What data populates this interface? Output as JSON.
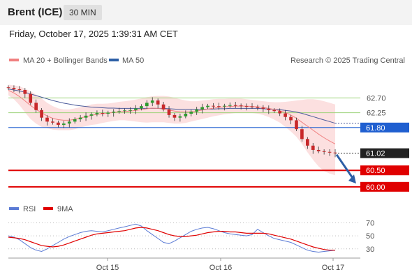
{
  "header": {
    "title": "Brent (ICE)",
    "interval": "30 MIN",
    "timestamp": "Friday, October 17, 2025 1:39:31 AM CET"
  },
  "legend": {
    "ma20_label": "MA 20 + Bollinger Bands",
    "ma50_label": "MA 50",
    "credit": "Research © 2025 Trading Central",
    "rsi_label": "RSI",
    "rsi_ma_label": "9MA"
  },
  "colors": {
    "ma20": "#f08080",
    "bands_fill": "#fbd5d5",
    "ma50": "#4a5a9a",
    "candle_up": "#2e9b2e",
    "candle_down": "#c8282a",
    "support_resistance": "#e00000",
    "pivot": "#1f5fd0",
    "resistance_green": "#9cd37a",
    "last_price_box": "#222222",
    "rsi": "#5b7bd5",
    "rsi_ma": "#e00000",
    "arrow": "#2d5fa6"
  },
  "chart_data": [
    {
      "type": "line",
      "name": "price",
      "x_labels": [
        "Oct 15",
        "Oct 16",
        "Oct 17"
      ],
      "ylim": [
        59.7,
        63.3
      ],
      "close": [
        63.0,
        62.96,
        62.94,
        62.82,
        62.55,
        62.33,
        62.1,
        61.98,
        61.95,
        61.88,
        61.92,
        61.98,
        62.05,
        62.1,
        62.16,
        62.2,
        62.24,
        62.22,
        62.25,
        62.28,
        62.3,
        62.32,
        62.33,
        62.38,
        62.45,
        62.55,
        62.62,
        62.5,
        62.35,
        62.18,
        62.1,
        62.14,
        62.22,
        62.28,
        62.35,
        62.42,
        62.46,
        62.45,
        62.44,
        62.46,
        62.48,
        62.47,
        62.45,
        62.44,
        62.43,
        62.4,
        62.37,
        62.33,
        62.3,
        62.23,
        62.12,
        62.02,
        61.75,
        61.45,
        61.25,
        61.12,
        61.08,
        61.06,
        61.04,
        61.02
      ],
      "ma20": [
        62.93,
        62.85,
        62.74,
        62.61,
        62.47,
        62.35,
        62.25,
        62.15,
        62.08,
        62.04,
        62.02,
        62.02,
        62.05,
        62.09,
        62.13,
        62.17,
        62.2,
        62.22,
        62.24,
        62.26,
        62.28,
        62.29,
        62.3,
        62.32,
        62.34,
        62.37,
        62.39,
        62.38,
        62.36,
        62.33,
        62.3,
        62.28,
        62.27,
        62.28,
        62.3,
        62.33,
        62.36,
        62.39,
        62.41,
        62.43,
        62.44,
        62.45,
        62.45,
        62.45,
        62.44,
        62.43,
        62.41,
        62.38,
        62.35,
        62.31,
        62.26,
        62.18,
        62.08,
        61.96,
        61.84,
        61.72,
        61.6,
        61.49,
        61.39,
        61.3
      ],
      "ma50": [
        62.97,
        62.94,
        62.91,
        62.87,
        62.82,
        62.77,
        62.72,
        62.67,
        62.62,
        62.58,
        62.54,
        62.51,
        62.48,
        62.46,
        62.44,
        62.42,
        62.41,
        62.4,
        62.39,
        62.39,
        62.38,
        62.38,
        62.38,
        62.38,
        62.38,
        62.38,
        62.38,
        62.38,
        62.38,
        62.37,
        62.36,
        62.35,
        62.35,
        62.35,
        62.35,
        62.35,
        62.36,
        62.36,
        62.37,
        62.37,
        62.38,
        62.38,
        62.38,
        62.38,
        62.38,
        62.38,
        62.37,
        62.36,
        62.35,
        62.34,
        62.32,
        62.3,
        62.27,
        62.23,
        62.18,
        62.13,
        62.08,
        62.03,
        61.98,
        61.93
      ],
      "band_upper": [
        63.1,
        63.08,
        63.05,
        62.98,
        62.9,
        62.8,
        62.68,
        62.55,
        62.45,
        62.38,
        62.35,
        62.35,
        62.38,
        62.42,
        62.46,
        62.5,
        62.52,
        62.52,
        62.53,
        62.55,
        62.58,
        62.6,
        62.62,
        62.65,
        62.68,
        62.72,
        62.75,
        62.76,
        62.76,
        62.74,
        62.7,
        62.66,
        62.62,
        62.6,
        62.6,
        62.62,
        62.64,
        62.66,
        62.67,
        62.67,
        62.68,
        62.68,
        62.68,
        62.66,
        62.64,
        62.62,
        62.6,
        62.58,
        62.57,
        62.57,
        62.58,
        62.6,
        62.62,
        62.64,
        62.66,
        62.66,
        62.64,
        62.6,
        62.55,
        62.5
      ],
      "band_lower": [
        62.78,
        62.66,
        62.48,
        62.26,
        62.06,
        61.92,
        61.82,
        61.78,
        61.74,
        61.72,
        61.72,
        61.72,
        61.75,
        61.8,
        61.84,
        61.88,
        61.9,
        61.94,
        61.97,
        62.0,
        62.02,
        62.02,
        62.0,
        61.98,
        61.96,
        61.95,
        61.96,
        61.96,
        61.96,
        61.94,
        61.92,
        61.92,
        61.94,
        61.98,
        62.02,
        62.06,
        62.1,
        62.14,
        62.17,
        62.2,
        62.22,
        62.24,
        62.24,
        62.24,
        62.24,
        62.22,
        62.18,
        62.12,
        62.04,
        61.95,
        61.82,
        61.68,
        61.52,
        61.3,
        61.05,
        60.82,
        60.62,
        60.48,
        60.4,
        60.35
      ],
      "levels": [
        {
          "value": 62.7,
          "label": "62.70",
          "kind": "resistance-minor"
        },
        {
          "value": 62.25,
          "label": "62.25",
          "kind": "resistance-minor"
        },
        {
          "value": 61.8,
          "label": "61.80",
          "kind": "pivot"
        },
        {
          "value": 61.02,
          "label": "61.02",
          "kind": "last-price"
        },
        {
          "value": 60.5,
          "label": "60.50",
          "kind": "support"
        },
        {
          "value": 60.0,
          "label": "60.00",
          "kind": "support"
        }
      ],
      "forecast_arrow": {
        "from": 61.02,
        "to": 60.1
      }
    },
    {
      "type": "line",
      "name": "rsi",
      "ylim": [
        18,
        78
      ],
      "y_ticks": [
        30,
        50,
        70
      ],
      "y_tick_labels": [
        "30",
        "50",
        "70"
      ],
      "rsi": [
        50,
        48,
        44,
        38,
        32,
        28,
        26,
        30,
        35,
        40,
        45,
        49,
        52,
        55,
        57,
        58,
        57,
        56,
        58,
        60,
        62,
        64,
        66,
        68,
        65,
        58,
        52,
        46,
        40,
        38,
        42,
        47,
        52,
        57,
        60,
        62,
        63,
        61,
        58,
        55,
        53,
        52,
        51,
        50,
        52,
        60,
        55,
        50,
        46,
        44,
        42,
        40,
        36,
        32,
        28,
        26,
        25,
        26,
        27,
        28
      ],
      "rsi_ma": [
        48,
        47,
        46,
        44,
        41,
        38,
        35,
        34,
        33,
        34,
        36,
        39,
        42,
        45,
        48,
        51,
        53,
        54,
        55,
        56,
        57,
        58,
        60,
        62,
        63,
        62,
        60,
        58,
        55,
        52,
        50,
        49,
        49,
        50,
        51,
        53,
        55,
        56,
        57,
        57,
        56,
        56,
        55,
        54,
        54,
        54,
        54,
        53,
        51,
        49,
        47,
        45,
        42,
        39,
        36,
        33,
        31,
        29,
        28,
        28
      ]
    }
  ]
}
